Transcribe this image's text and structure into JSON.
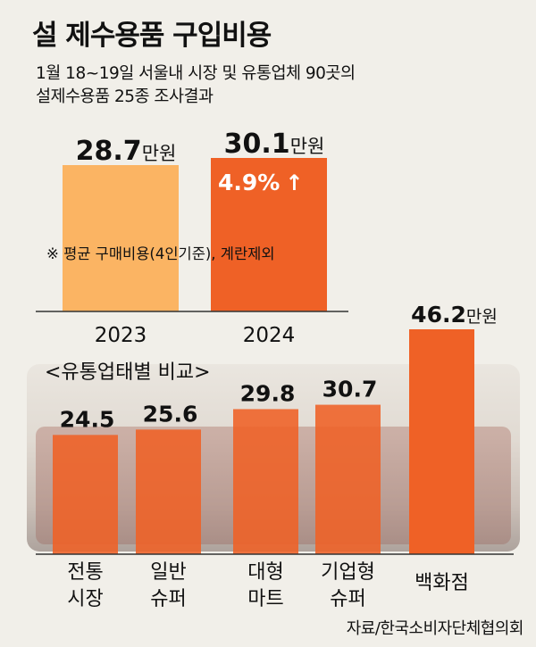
{
  "title": "설 제수용품 구입비용",
  "subtitle": [
    "1월 18~19일 서울내 시장 및 유통업체 90곳의",
    "설제수용품 25종 조사결과"
  ],
  "source": "자료/한국소비자단체협의회",
  "colors": {
    "bar_2023": "#fbb463",
    "bar_2024": "#ef6126",
    "bar_channel": "#ef6126",
    "axis": "#333333",
    "text": "#111111",
    "white": "#ffffff"
  },
  "chart_data": [
    {
      "type": "bar",
      "title": "설 제수용품 구입비용",
      "unit": "만원",
      "categories": [
        "2023",
        "2024"
      ],
      "values": [
        28.7,
        30.1
      ],
      "value_labels": [
        "28.7",
        "30.1"
      ],
      "annotation_change": "4.9%",
      "annotation_arrow": "↑",
      "note": "※ 평균 구매비용(4인기준), 계란제외"
    },
    {
      "type": "bar",
      "title": "<유통업태별 비교>",
      "unit": "만원",
      "categories": [
        [
          "전통",
          "시장"
        ],
        [
          "일반",
          "슈퍼"
        ],
        [
          "대형",
          "마트"
        ],
        [
          "기업형",
          "슈퍼"
        ],
        [
          "백화점"
        ]
      ],
      "values": [
        24.5,
        25.6,
        29.8,
        30.7,
        46.2
      ],
      "value_labels": [
        "24.5",
        "25.6",
        "29.8",
        "30.7",
        "46.2"
      ]
    }
  ]
}
